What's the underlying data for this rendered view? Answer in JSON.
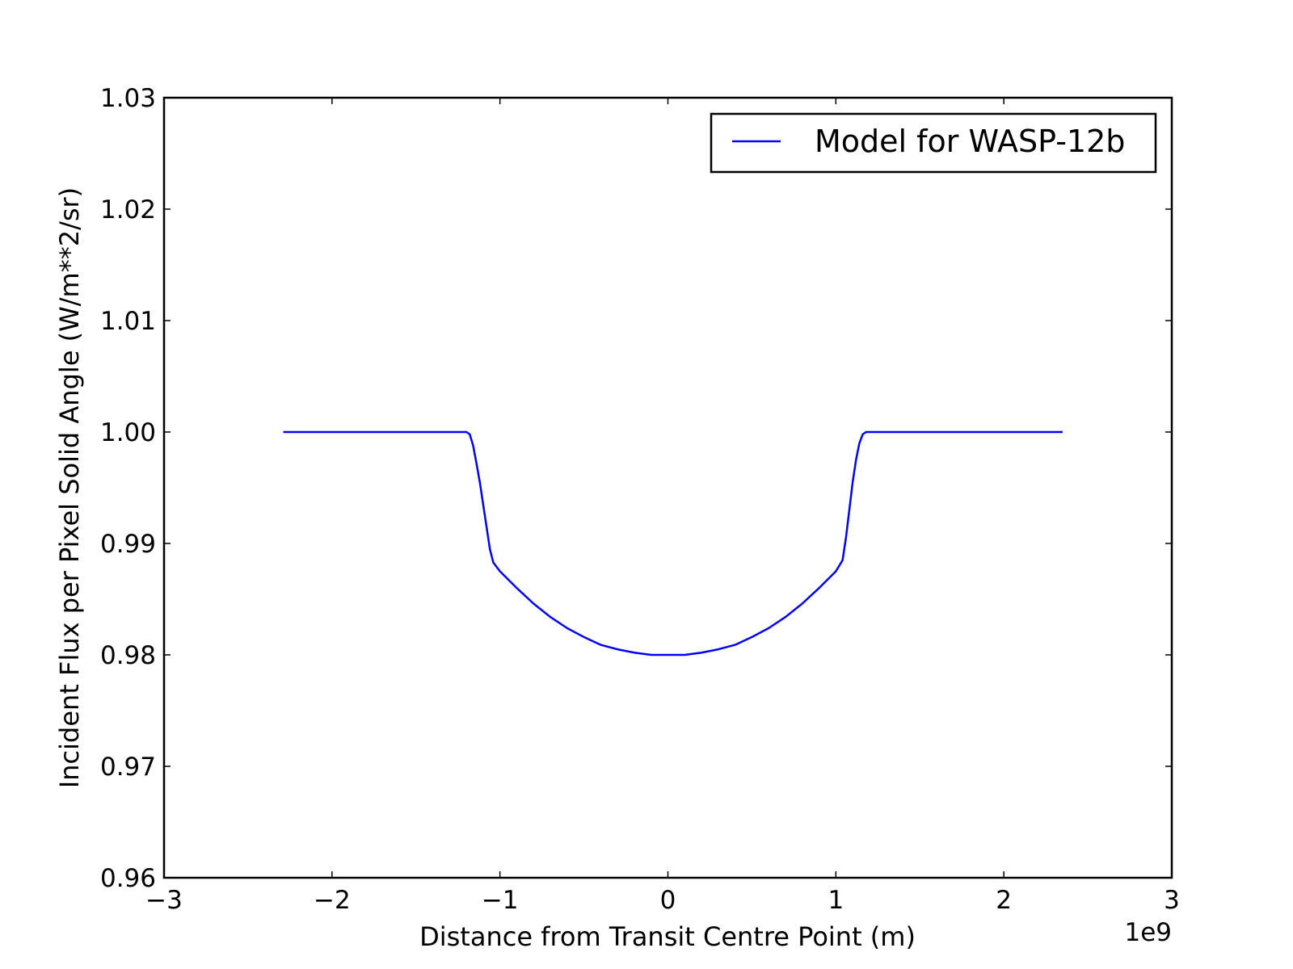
{
  "chart_data": {
    "type": "line",
    "title": "",
    "xlabel": "Distance from Transit Centre Point (m)",
    "ylabel": "Incident Flux per Pixel Solid Angle (W/m**2/sr)",
    "x_offset_label": "1e9",
    "xlim": [
      -3,
      3
    ],
    "ylim": [
      0.96,
      1.03
    ],
    "xticks": [
      -3,
      -2,
      -1,
      0,
      1,
      2,
      3
    ],
    "xtick_labels": [
      "−3",
      "−2",
      "−1",
      "0",
      "1",
      "2",
      "3"
    ],
    "yticks": [
      0.96,
      0.97,
      0.98,
      0.99,
      1.0,
      1.01,
      1.02,
      1.03
    ],
    "ytick_labels": [
      "0.96",
      "0.97",
      "0.98",
      "0.99",
      "1.00",
      "1.01",
      "1.02",
      "1.03"
    ],
    "grid": false,
    "legend_position": "top-right",
    "series": [
      {
        "name": "Model for WASP-12b",
        "color": "#0000ff",
        "x": [
          -2.29,
          -1.2,
          -1.18,
          -1.16,
          -1.14,
          -1.12,
          -1.1,
          -1.08,
          -1.06,
          -1.04,
          -1.0,
          -0.9,
          -0.8,
          -0.7,
          -0.6,
          -0.5,
          -0.4,
          -0.3,
          -0.2,
          -0.1,
          0.0,
          0.1,
          0.2,
          0.3,
          0.4,
          0.5,
          0.6,
          0.7,
          0.8,
          0.9,
          1.0,
          1.04,
          1.06,
          1.08,
          1.1,
          1.12,
          1.14,
          1.16,
          1.18,
          1.2,
          2.35
        ],
        "y": [
          1.0,
          1.0,
          0.9998,
          0.9988,
          0.9972,
          0.9955,
          0.9935,
          0.9915,
          0.9895,
          0.9883,
          0.9875,
          0.986,
          0.9846,
          0.9834,
          0.9824,
          0.9816,
          0.9809,
          0.9805,
          0.9802,
          0.98,
          0.98,
          0.98,
          0.9802,
          0.9805,
          0.9809,
          0.9816,
          0.9824,
          0.9834,
          0.9846,
          0.986,
          0.9875,
          0.9885,
          0.9905,
          0.993,
          0.9955,
          0.9975,
          0.999,
          0.9998,
          1.0,
          1.0,
          1.0
        ]
      }
    ]
  }
}
